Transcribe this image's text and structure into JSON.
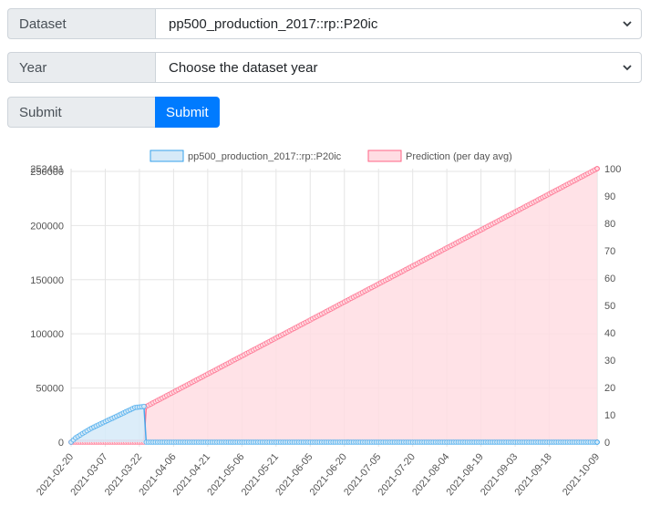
{
  "form": {
    "dataset_label": "Dataset",
    "dataset_value": "pp500_production_2017::rp::P20ic",
    "year_label": "Year",
    "year_value": "Choose the dataset year",
    "submit_label": "Submit",
    "submit_button": "Submit"
  },
  "colors": {
    "series_blue": "#36a2eb",
    "series_blue_fill": "#d6eaf8",
    "series_pink": "#ff6384",
    "series_pink_fill": "#ffdde3",
    "button": "#007bff"
  },
  "chart_data": {
    "type": "line",
    "legend_position": "top",
    "legend": [
      "pp500_production_2017::rp::P20ic",
      "Prediction (per day avg)"
    ],
    "y_left": {
      "min": 0,
      "max": 252491,
      "ticks": [
        "0",
        "50000",
        "100000",
        "150000",
        "200000",
        "250000",
        "252491"
      ]
    },
    "y_right": {
      "min": 0,
      "max": 100,
      "ticks": [
        "0",
        "10",
        "20",
        "30",
        "40",
        "50",
        "60",
        "70",
        "80",
        "90",
        "100"
      ]
    },
    "x_ticks": [
      "2021-02-20",
      "2021-03-07",
      "2021-03-22",
      "2021-04-06",
      "2021-04-21",
      "2021-05-06",
      "2021-05-21",
      "2021-06-05",
      "2021-06-20",
      "2021-07-05",
      "2021-07-20",
      "2021-08-04",
      "2021-08-19",
      "2021-09-03",
      "2021-09-18",
      "2021-10-09"
    ],
    "series": [
      {
        "name": "pp500_production_2017::rp::P20ic",
        "axis": "left",
        "points": [
          [
            "2021-02-20",
            0
          ],
          [
            "2021-02-22",
            4000
          ],
          [
            "2021-02-25",
            8000
          ],
          [
            "2021-03-01",
            13000
          ],
          [
            "2021-03-05",
            17000
          ],
          [
            "2021-03-09",
            21000
          ],
          [
            "2021-03-13",
            25000
          ],
          [
            "2021-03-17",
            29000
          ],
          [
            "2021-03-20",
            32000
          ],
          [
            "2021-03-24",
            33000
          ],
          [
            "2021-03-25",
            0
          ],
          [
            "2021-10-09",
            0
          ]
        ]
      },
      {
        "name": "Prediction (per day avg)",
        "axis": "left",
        "points": [
          [
            "2021-02-20",
            0
          ],
          [
            "2021-03-24",
            0
          ],
          [
            "2021-03-25",
            33000
          ],
          [
            "2021-10-09",
            252491
          ]
        ]
      }
    ]
  }
}
